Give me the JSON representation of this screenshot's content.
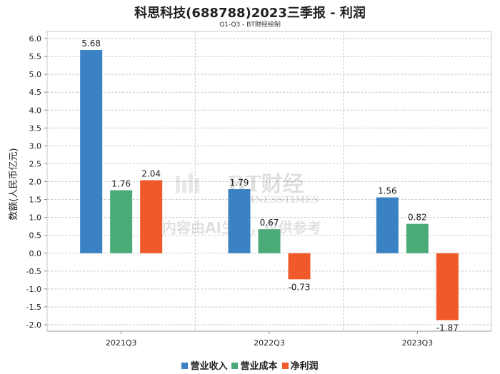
{
  "chart_data": {
    "type": "bar",
    "title": "科思科技(688788)2023三季报 - 利润",
    "subtitle": "Q1-Q3 - BT财经绘制",
    "ylabel": "数额(人民币亿元)",
    "xlabel": "",
    "ylim": [
      -2.0,
      6.0
    ],
    "yticks": [
      "6.0",
      "5.5",
      "5.0",
      "4.5",
      "4.0",
      "3.5",
      "3.0",
      "2.5",
      "2.0",
      "1.5",
      "1.0",
      "0.5",
      "0.0",
      "-0.5",
      "-1.0",
      "-1.5",
      "-2.0"
    ],
    "categories": [
      "2021Q3",
      "2022Q3",
      "2023Q3"
    ],
    "series": [
      {
        "name": "营业收入",
        "color": "#3a82c4",
        "values": [
          5.68,
          1.79,
          1.56
        ],
        "labels": [
          "5.68",
          "1.79",
          "1.56"
        ]
      },
      {
        "name": "营业成本",
        "color": "#4aaa78",
        "values": [
          1.76,
          0.67,
          0.82
        ],
        "labels": [
          "1.76",
          "0.67",
          "0.82"
        ]
      },
      {
        "name": "净利润",
        "color": "#f0592a",
        "values": [
          2.04,
          -0.73,
          -1.87
        ],
        "labels": [
          "2.04",
          "-0.73",
          "-1.87"
        ]
      }
    ],
    "grid": true,
    "legend": "bottom-center"
  },
  "watermark": {
    "logo_text": "BT财经",
    "logo_sub": "BUSINESSTIMES",
    "notice": "内容由AI生成，仅供参考"
  }
}
